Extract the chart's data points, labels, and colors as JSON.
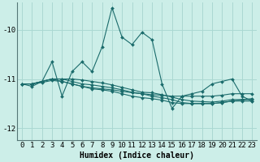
{
  "xlabel": "Humidex (Indice chaleur)",
  "bg_color": "#cceee8",
  "grid_color": "#aad8d2",
  "line_color": "#1a6b6b",
  "xlim": [
    -0.5,
    23.5
  ],
  "ylim": [
    -12.25,
    -9.45
  ],
  "yticks": [
    -12,
    -11,
    -10
  ],
  "xticks": [
    0,
    1,
    2,
    3,
    4,
    5,
    6,
    7,
    8,
    9,
    10,
    11,
    12,
    13,
    14,
    15,
    16,
    17,
    18,
    19,
    20,
    21,
    22,
    23
  ],
  "series": [
    [
      -11.1,
      -11.15,
      -11.05,
      -10.65,
      -11.35,
      -10.85,
      -10.65,
      -10.85,
      -10.35,
      -9.55,
      -10.15,
      -10.3,
      -10.05,
      -10.2,
      -11.1,
      -11.6,
      -11.35,
      -11.3,
      -11.25,
      -11.1,
      -11.05,
      -11.0,
      -11.35,
      -11.45
    ],
    [
      -11.1,
      -11.1,
      -11.05,
      -11.0,
      -11.05,
      -11.1,
      -11.15,
      -11.18,
      -11.2,
      -11.22,
      -11.25,
      -11.28,
      -11.3,
      -11.32,
      -11.33,
      -11.35,
      -11.35,
      -11.35,
      -11.35,
      -11.35,
      -11.33,
      -11.3,
      -11.3,
      -11.3
    ],
    [
      -11.1,
      -11.1,
      -11.07,
      -11.03,
      -11.05,
      -11.1,
      -11.15,
      -11.2,
      -11.22,
      -11.25,
      -11.3,
      -11.35,
      -11.38,
      -11.4,
      -11.43,
      -11.48,
      -11.5,
      -11.5,
      -11.5,
      -11.5,
      -11.48,
      -11.45,
      -11.42,
      -11.4
    ],
    [
      -11.1,
      -11.1,
      -11.05,
      -11.0,
      -11.0,
      -11.05,
      -11.1,
      -11.12,
      -11.15,
      -11.18,
      -11.22,
      -11.27,
      -11.3,
      -11.35,
      -11.38,
      -11.42,
      -11.48,
      -11.5,
      -11.5,
      -11.5,
      -11.48,
      -11.45,
      -11.45,
      -11.45
    ],
    [
      -11.1,
      -11.1,
      -11.05,
      -11.0,
      -11.0,
      -11.0,
      -11.02,
      -11.05,
      -11.08,
      -11.12,
      -11.17,
      -11.22,
      -11.27,
      -11.28,
      -11.32,
      -11.37,
      -11.42,
      -11.45,
      -11.46,
      -11.47,
      -11.45,
      -11.42,
      -11.42,
      -11.42
    ]
  ]
}
